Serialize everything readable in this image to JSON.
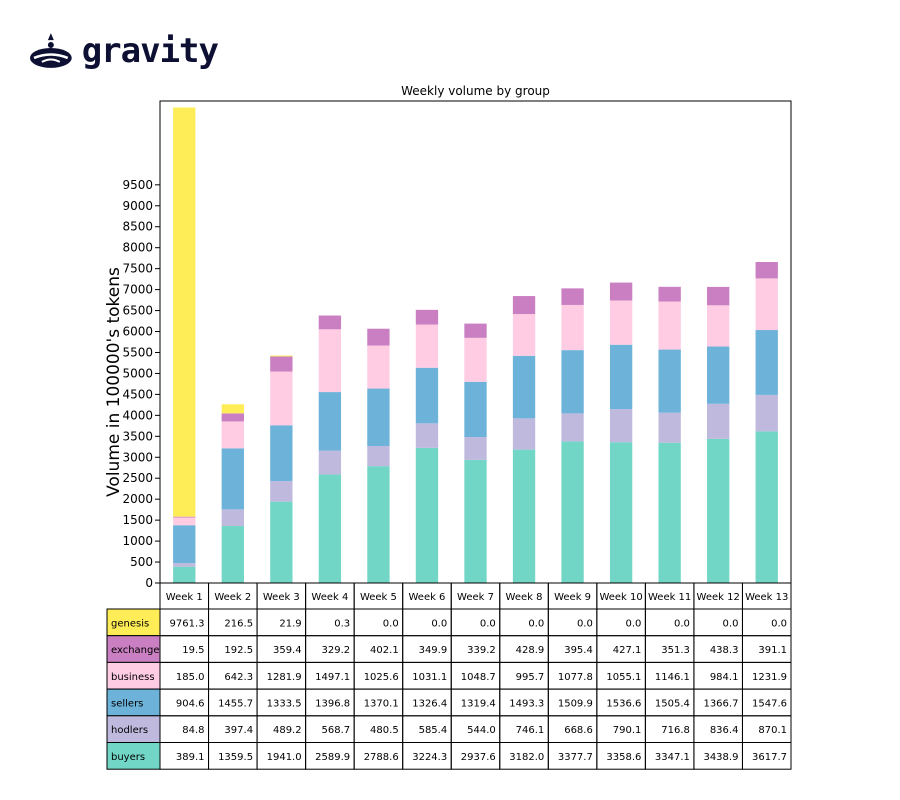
{
  "logo": {
    "text": "gravity",
    "icon": "gravity-droplet-icon",
    "color": "#0d1033"
  },
  "chart_data": {
    "type": "bar",
    "stacked": true,
    "title": "Weekly volume by group",
    "xlabel": "",
    "ylabel": "Volume in 100000's tokens",
    "ylim": [
      0,
      11500
    ],
    "yticks": [
      0,
      500,
      1000,
      1500,
      2000,
      2500,
      3000,
      3500,
      4000,
      4500,
      5000,
      5500,
      6000,
      6500,
      7000,
      7500,
      8000,
      8500,
      9000,
      9500
    ],
    "grid": false,
    "legend": "table",
    "categories": [
      "Week 1",
      "Week 2",
      "Week 3",
      "Week 4",
      "Week 5",
      "Week 6",
      "Week 7",
      "Week 8",
      "Week 9",
      "Week 10",
      "Week 11",
      "Week 12",
      "Week 13"
    ],
    "series": [
      {
        "name": "genesis",
        "color": "#ffed57",
        "values": [
          9761.3,
          216.5,
          21.9,
          0.3,
          0.0,
          0.0,
          0.0,
          0.0,
          0.0,
          0.0,
          0.0,
          0.0,
          0.0
        ]
      },
      {
        "name": "exchange",
        "color": "#c97fc2",
        "values": [
          19.5,
          192.5,
          359.4,
          329.2,
          402.1,
          349.9,
          339.2,
          428.9,
          395.4,
          427.1,
          351.3,
          438.3,
          391.1
        ]
      },
      {
        "name": "business",
        "color": "#ffcce4",
        "values": [
          185.0,
          642.3,
          1281.9,
          1497.1,
          1025.6,
          1031.1,
          1048.7,
          995.7,
          1077.8,
          1055.1,
          1146.1,
          984.1,
          1231.9
        ]
      },
      {
        "name": "sellers",
        "color": "#6cb2d9",
        "values": [
          904.6,
          1455.7,
          1333.5,
          1396.8,
          1370.1,
          1326.4,
          1319.4,
          1493.3,
          1509.9,
          1536.6,
          1505.4,
          1366.7,
          1547.6
        ]
      },
      {
        "name": "hodlers",
        "color": "#bfb9de",
        "values": [
          84.8,
          397.4,
          489.2,
          568.7,
          480.5,
          585.4,
          544.0,
          746.1,
          668.6,
          790.1,
          716.8,
          836.4,
          870.1
        ]
      },
      {
        "name": "buyers",
        "color": "#72d6c6",
        "values": [
          389.1,
          1359.5,
          1941.0,
          2589.9,
          2788.6,
          3224.3,
          2937.6,
          3182.0,
          3377.7,
          3358.6,
          3347.1,
          3438.9,
          3617.7
        ]
      }
    ]
  }
}
